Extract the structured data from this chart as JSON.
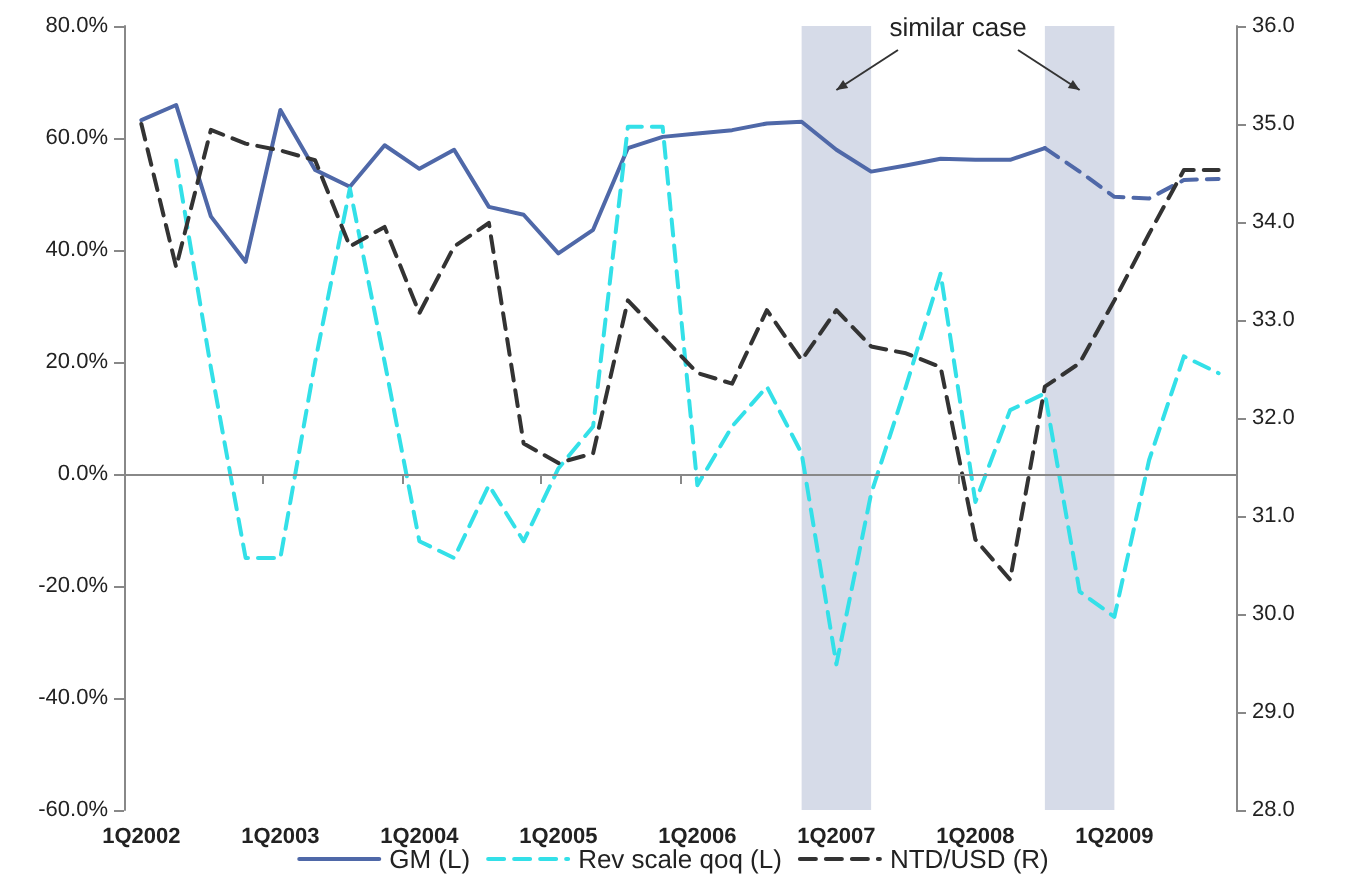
{
  "chart_data": {
    "type": "line",
    "categories": [
      "1Q2002",
      null,
      null,
      null,
      "1Q2003",
      null,
      null,
      null,
      "1Q2004",
      null,
      null,
      null,
      "1Q2005",
      null,
      null,
      null,
      "1Q2006",
      null,
      null,
      null,
      "1Q2007",
      null,
      null,
      null,
      "1Q2008",
      null,
      null,
      null,
      "1Q2009",
      null,
      null,
      null
    ],
    "ylim": [
      -60,
      80
    ],
    "yticks": [
      {
        "value": -60,
        "label": "-60.0%"
      },
      {
        "value": -40,
        "label": "-40.0%"
      },
      {
        "value": -20,
        "label": "-20.0%"
      },
      {
        "value": 0,
        "label": "0.0%"
      },
      {
        "value": 20,
        "label": "20.0%"
      },
      {
        "value": 40,
        "label": "40.0%"
      },
      {
        "value": 60,
        "label": "60.0%"
      },
      {
        "value": 80,
        "label": "80.0%"
      }
    ],
    "y2lim": [
      28,
      36
    ],
    "y2ticks": [
      {
        "value": 28,
        "label": "28.0"
      },
      {
        "value": 29,
        "label": "29.0"
      },
      {
        "value": 30,
        "label": "30.0"
      },
      {
        "value": 31,
        "label": "31.0"
      },
      {
        "value": 32,
        "label": "32.0"
      },
      {
        "value": 33,
        "label": "33.0"
      },
      {
        "value": 34,
        "label": "34.0"
      },
      {
        "value": 35,
        "label": "35.0"
      },
      {
        "value": 36,
        "label": "36.0"
      }
    ],
    "series": [
      {
        "name": "GM (L)",
        "color": "#4f68a8",
        "line_style": "solid",
        "values": [
          63.2,
          65.9,
          46,
          37.9,
          65,
          54.3,
          51.3,
          58.7,
          54.5,
          57.9,
          47.7,
          46.3,
          39.4,
          43.6,
          58.2,
          60.2,
          60.8,
          61.4,
          62.6,
          62.9,
          57.9,
          54,
          55.1,
          56.3,
          56.1,
          56.1,
          58.2,
          null,
          null,
          null,
          null,
          null
        ]
      },
      {
        "color": "#4f68a8",
        "line_style": "dashed",
        "values": [
          null,
          null,
          null,
          null,
          null,
          null,
          null,
          null,
          null,
          null,
          null,
          null,
          null,
          null,
          null,
          null,
          null,
          null,
          null,
          null,
          null,
          null,
          null,
          null,
          null,
          null,
          58.2,
          54,
          49.5,
          49.2,
          52.5,
          52.7
        ]
      },
      {
        "name": "Rev scale qoq (L)",
        "color": "#33e0e8",
        "line_style": "dashed",
        "values": [
          null,
          56,
          19,
          -15,
          -15,
          20,
          51,
          20,
          -12,
          -15,
          -2,
          -12,
          1,
          8.5,
          62,
          62,
          -2,
          8.5,
          15.6,
          3.7,
          -34,
          -3.5,
          15.6,
          35.8,
          -5,
          11.4,
          14.4,
          -21,
          -25.5,
          2.5,
          21,
          18
        ]
      },
      {
        "name": "NTD/USD (R)",
        "color": "#333333",
        "line_style": "dashed",
        "axis": "y2",
        "values": [
          35,
          33.54,
          34.94,
          34.8,
          34.73,
          34.63,
          33.75,
          33.95,
          33.07,
          33.75,
          33.99,
          31.74,
          31.54,
          31.64,
          33.2,
          32.83,
          32.46,
          32.35,
          33.1,
          32.59,
          33.1,
          32.73,
          32.66,
          32.52,
          30.76,
          30.35,
          32.32,
          32.56,
          33.2,
          33.88,
          34.53,
          34.53
        ]
      }
    ],
    "annotations": [
      "similar case"
    ],
    "ref_lines": [
      {
        "axis": "y",
        "value": 0,
        "color": "#888888"
      }
    ],
    "marker": "none",
    "grid": false,
    "legend": "bottom"
  }
}
